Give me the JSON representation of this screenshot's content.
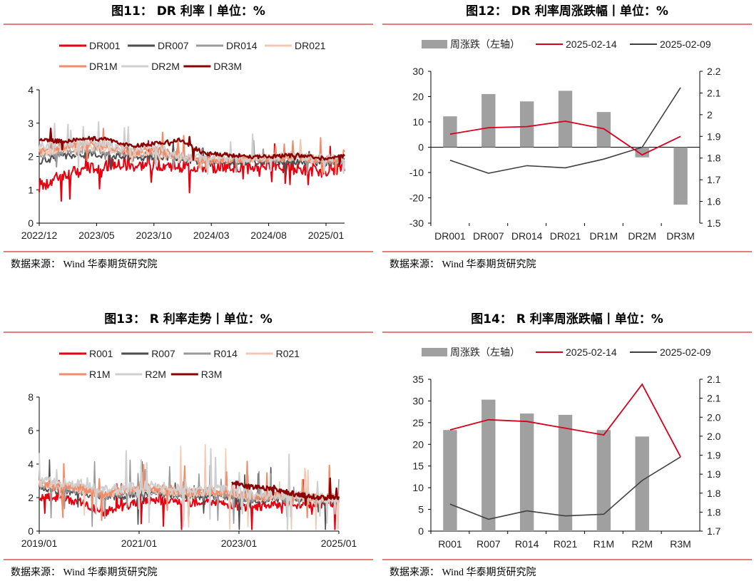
{
  "colors": {
    "dr001": "#e8000f",
    "dr007": "#4d4d4d",
    "dr014": "#999999",
    "dr021": "#f5c6b0",
    "dr1m": "#f28c68",
    "dr2m": "#cfcfcf",
    "dr3m": "#8b0000",
    "bar": "#a0a0a0",
    "line_now": "#d6001c",
    "line_prev": "#404040"
  },
  "source_text": "数据来源： Wind  华泰期货研究院",
  "chart_data": [
    {
      "id": "fig11",
      "type": "line",
      "title": "图11：  DR 利率丨单位：%",
      "legend": [
        "DR001",
        "DR007",
        "DR014",
        "DR021",
        "DR1M",
        "DR2M",
        "DR3M"
      ],
      "x_tick_labels": [
        "2022/12",
        "2023/05",
        "2023/10",
        "2024/03",
        "2024/08",
        "2025/01"
      ],
      "y_ticks": [
        "0",
        "1",
        "2",
        "3",
        "4"
      ],
      "ylim": [
        0,
        4
      ],
      "series": [
        {
          "name": "DR001",
          "base": [
            1.1,
            1.45,
            1.6,
            1.75,
            1.7,
            1.75,
            1.7,
            1.65,
            1.7,
            1.65,
            1.75,
            1.6,
            1.55,
            1.65
          ]
        },
        {
          "name": "DR007",
          "base": [
            1.85,
            2.0,
            2.05,
            2.05,
            1.95,
            2.0,
            1.9,
            1.85,
            1.85,
            1.85,
            1.85,
            1.85,
            1.8,
            1.85
          ]
        },
        {
          "name": "DR014",
          "base": [
            2.0,
            2.1,
            2.2,
            2.15,
            2.05,
            2.1,
            1.95,
            1.9,
            1.9,
            1.9,
            1.9,
            1.95,
            1.85,
            1.9
          ]
        },
        {
          "name": "DR021",
          "base": [
            2.1,
            2.2,
            2.3,
            2.2,
            2.1,
            2.1,
            1.95,
            1.9,
            1.9,
            1.9,
            1.95,
            1.95,
            1.9,
            1.9
          ]
        },
        {
          "name": "DR1M",
          "base": [
            2.2,
            2.3,
            2.4,
            2.3,
            2.15,
            2.2,
            2.0,
            1.9,
            1.9,
            1.95,
            1.95,
            2.0,
            1.9,
            1.95
          ]
        },
        {
          "name": "DR2M",
          "base": [
            2.3,
            2.4,
            2.45,
            2.35,
            2.2,
            2.3,
            2.0,
            1.95,
            1.95,
            1.95,
            2.0,
            2.0,
            1.95,
            1.95
          ]
        },
        {
          "name": "DR3M",
          "base": [
            2.5,
            2.45,
            2.55,
            2.5,
            2.3,
            2.4,
            2.5,
            2.1,
            2.05,
            2.0,
            2.0,
            2.05,
            1.95,
            2.0
          ]
        }
      ]
    },
    {
      "id": "fig12",
      "type": "bar+line",
      "title": "图12：  DR 利率周涨跌幅丨单位：%",
      "legend": [
        "周涨跌（左轴）",
        "2025-02-14",
        "2025-02-09"
      ],
      "categories": [
        "DR001",
        "DR007",
        "DR014",
        "DR021",
        "DR1M",
        "DR2M",
        "DR3M"
      ],
      "bars": [
        12.2,
        21.0,
        18.1,
        22.3,
        13.9,
        -4.0,
        -22.7
      ],
      "line_now": [
        1.91,
        1.94,
        1.945,
        1.97,
        1.935,
        1.815,
        1.9
      ],
      "line_prev": [
        1.79,
        1.73,
        1.765,
        1.755,
        1.795,
        1.85,
        2.125
      ],
      "y_left_ticks": [
        "-30",
        "-20",
        "-10",
        "0",
        "10",
        "20",
        "30"
      ],
      "ylim_left": [
        -30,
        30
      ],
      "y_right_ticks": [
        "1.5",
        "1.6",
        "1.7",
        "1.8",
        "1.9",
        "2",
        "2.1",
        "2.2"
      ],
      "ylim_right": [
        1.5,
        2.2
      ]
    },
    {
      "id": "fig13",
      "type": "line",
      "title": "图13：  R 利率走势丨单位：%",
      "legend": [
        "R001",
        "R007",
        "R014",
        "R021",
        "R1M",
        "R2M",
        "R3M"
      ],
      "x_tick_labels": [
        "2019/01",
        "2021/01",
        "2023/01",
        "2025/01"
      ],
      "y_ticks": [
        "0",
        "2",
        "4",
        "6",
        "8"
      ],
      "ylim": [
        0,
        8
      ],
      "series": [
        {
          "name": "R001",
          "base": [
            2.0,
            2.0,
            1.7,
            1.1,
            1.5,
            1.8,
            1.8,
            1.7,
            1.8,
            1.5,
            1.4,
            1.6,
            1.6,
            1.6,
            1.7
          ]
        },
        {
          "name": "R007",
          "base": [
            2.5,
            2.4,
            2.3,
            2.0,
            2.1,
            2.2,
            2.2,
            2.0,
            2.1,
            2.0,
            1.8,
            1.9,
            1.9,
            1.8,
            1.8
          ]
        },
        {
          "name": "R014",
          "base": [
            2.7,
            2.6,
            2.4,
            2.1,
            2.3,
            2.4,
            2.3,
            2.1,
            2.2,
            2.1,
            1.9,
            2.0,
            2.0,
            1.9,
            1.9
          ]
        },
        {
          "name": "R021",
          "base": [
            2.8,
            2.7,
            2.5,
            2.2,
            2.4,
            2.5,
            2.4,
            2.2,
            2.3,
            2.2,
            2.0,
            2.1,
            2.0,
            1.9,
            1.9
          ]
        },
        {
          "name": "R1M",
          "base": [
            2.9,
            2.8,
            2.6,
            2.2,
            2.5,
            2.6,
            2.5,
            2.3,
            2.4,
            2.3,
            2.1,
            2.1,
            2.1,
            2.0,
            2.0
          ]
        },
        {
          "name": "R2M",
          "base": [
            3.0,
            2.9,
            2.8,
            2.4,
            2.6,
            2.7,
            2.6,
            2.4,
            2.5,
            2.4,
            2.2,
            2.2,
            2.1,
            2.0,
            2.0
          ]
        },
        {
          "name": "R3M",
          "base": [
            null,
            null,
            null,
            null,
            null,
            null,
            null,
            null,
            null,
            2.9,
            2.6,
            2.5,
            2.2,
            2.0,
            2.0
          ]
        }
      ]
    },
    {
      "id": "fig14",
      "type": "bar+line",
      "title": "图14：  R 利率周涨跌幅丨单位：%",
      "legend": [
        "周涨跌（左轴）",
        "2025-02-14",
        "2025-02-09"
      ],
      "categories": [
        "R001",
        "R007",
        "R014",
        "R021",
        "R1M",
        "R2M",
        "R3M"
      ],
      "bars": [
        23.3,
        30.3,
        27.1,
        26.8,
        23.3,
        21.8,
        0
      ],
      "line_now": [
        2.0,
        2.03,
        2.025,
        2.005,
        1.985,
        2.135,
        1.92
      ],
      "line_prev": [
        1.78,
        1.735,
        1.76,
        1.745,
        1.75,
        1.85,
        1.92
      ],
      "y_left_ticks": [
        "0",
        "5",
        "10",
        "15",
        "20",
        "25",
        "30",
        "35"
      ],
      "ylim_left": [
        0,
        35
      ],
      "y_right_ticks": [
        "1.7",
        "1.8",
        "1.8",
        "1.9",
        "1.9",
        "2.0",
        "2.0",
        "2.1",
        "2.1"
      ],
      "ylim_right": [
        1.7,
        2.15
      ]
    }
  ]
}
